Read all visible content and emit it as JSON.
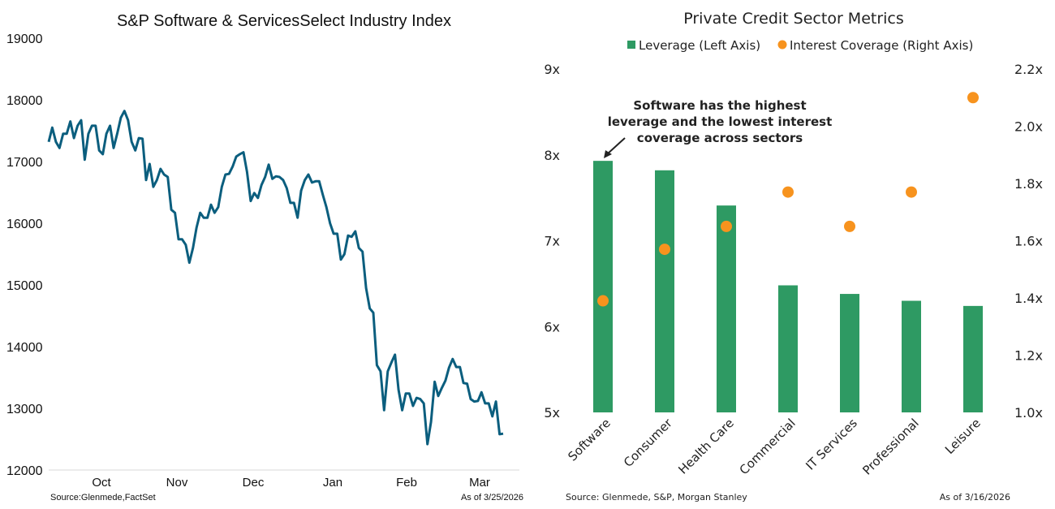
{
  "chart_data": [
    {
      "type": "line",
      "title": "S&P Software & ServicesSelect Industry Index",
      "xlabel": "",
      "ylabel": "",
      "ylim": [
        12000,
        19000
      ],
      "yticks": [
        12000,
        13000,
        14000,
        15000,
        16000,
        17000,
        18000,
        19000
      ],
      "xtick_labels": [
        "Oct",
        "Nov",
        "Dec",
        "Jan",
        "Feb",
        "Mar"
      ],
      "grid": false,
      "color": "#0b5e7e",
      "source": "Source:Glenmede,FactSet",
      "as_of": "As of 3/25/2026",
      "values": [
        17320,
        17550,
        17320,
        17220,
        17450,
        17450,
        17650,
        17380,
        17580,
        17670,
        17030,
        17450,
        17580,
        17580,
        17180,
        17120,
        17450,
        17580,
        17220,
        17450,
        17710,
        17820,
        17670,
        17320,
        17180,
        17380,
        17370,
        16700,
        16960,
        16590,
        16700,
        16880,
        16790,
        16750,
        16220,
        16170,
        15740,
        15740,
        15650,
        15360,
        15600,
        15930,
        16170,
        16090,
        16090,
        16300,
        16170,
        16260,
        16590,
        16790,
        16800,
        16920,
        17080,
        17120,
        17150,
        16830,
        16360,
        16490,
        16410,
        16620,
        16750,
        16950,
        16720,
        16760,
        16750,
        16700,
        16570,
        16330,
        16330,
        16090,
        16530,
        16700,
        16790,
        16660,
        16680,
        16680,
        16460,
        16260,
        16000,
        15830,
        15830,
        15410,
        15500,
        15800,
        15780,
        15870,
        15600,
        15540,
        14950,
        14620,
        14550,
        13700,
        13600,
        12970,
        13600,
        13740,
        13870,
        13300,
        12970,
        13240,
        13240,
        13040,
        13170,
        13150,
        13080,
        12420,
        12780,
        13430,
        13200,
        13330,
        13450,
        13660,
        13800,
        13670,
        13670,
        13410,
        13400,
        13150,
        13110,
        13120,
        13260,
        13080,
        13080,
        12870,
        13110,
        12580,
        12590
      ]
    },
    {
      "type": "bar+scatter",
      "title": "Private Credit Sector Metrics",
      "categories": [
        "Software",
        "Consumer",
        "Health Care",
        "Commercial",
        "IT Services",
        "Professional",
        "Leisure"
      ],
      "series": [
        {
          "name": "Leverage (Left Axis)",
          "type": "bar",
          "axis": "left",
          "color": "#2e9a63",
          "values": [
            7.93,
            7.82,
            7.41,
            6.48,
            6.38,
            6.3,
            6.24
          ]
        },
        {
          "name": "Interest Coverage (Right Axis)",
          "type": "scatter",
          "axis": "right",
          "color": "#f7931e",
          "values": [
            1.39,
            1.57,
            1.65,
            1.77,
            1.65,
            1.77,
            2.1
          ]
        }
      ],
      "ylim_left": [
        5,
        9
      ],
      "yticks_left": [
        "5x",
        "6x",
        "7x",
        "8x",
        "9x"
      ],
      "ylim_right": [
        1.0,
        2.2
      ],
      "yticks_right": [
        "1.0x",
        "1.2x",
        "1.4x",
        "1.6x",
        "1.8x",
        "2.0x",
        "2.2x"
      ],
      "legend": "top",
      "grid": false,
      "annotation": [
        "Software has the highest",
        "leverage and the lowest interest",
        "coverage across sectors"
      ],
      "source": "Source: Glenmede, S&P, Morgan Stanley",
      "as_of": "As of 3/16/2026"
    }
  ]
}
